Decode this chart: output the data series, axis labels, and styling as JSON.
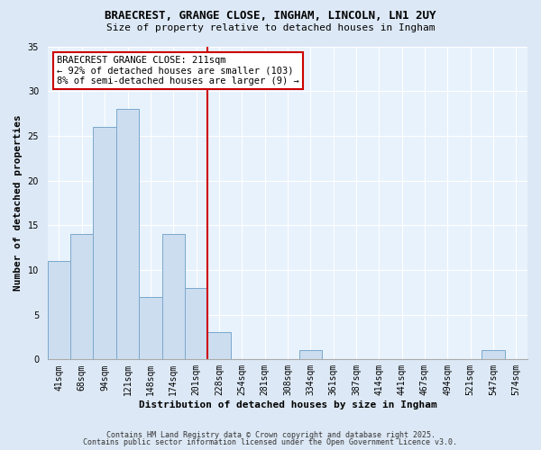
{
  "title1": "BRAECREST, GRANGE CLOSE, INGHAM, LINCOLN, LN1 2UY",
  "title2": "Size of property relative to detached houses in Ingham",
  "xlabel": "Distribution of detached houses by size in Ingham",
  "ylabel": "Number of detached properties",
  "bin_labels": [
    "41sqm",
    "68sqm",
    "94sqm",
    "121sqm",
    "148sqm",
    "174sqm",
    "201sqm",
    "228sqm",
    "254sqm",
    "281sqm",
    "308sqm",
    "334sqm",
    "361sqm",
    "387sqm",
    "414sqm",
    "441sqm",
    "467sqm",
    "494sqm",
    "521sqm",
    "547sqm",
    "574sqm"
  ],
  "bar_heights": [
    11,
    14,
    26,
    28,
    7,
    14,
    8,
    3,
    0,
    0,
    0,
    1,
    0,
    0,
    0,
    0,
    0,
    0,
    0,
    1,
    0
  ],
  "bar_color": "#ccddf0",
  "bar_edge_color": "#7aa8cc",
  "vline_color": "#cc0000",
  "annotation_title": "BRAECREST GRANGE CLOSE: 211sqm",
  "annotation_line1": "← 92% of detached houses are smaller (103)",
  "annotation_line2": "8% of semi-detached houses are larger (9) →",
  "annotation_box_edge": "#cc0000",
  "ylim": [
    0,
    35
  ],
  "yticks": [
    0,
    5,
    10,
    15,
    20,
    25,
    30,
    35
  ],
  "footer1": "Contains HM Land Registry data © Crown copyright and database right 2025.",
  "footer2": "Contains public sector information licensed under the Open Government Licence v3.0.",
  "bg_color": "#dce8f5",
  "plot_bg_color": "#e8f2fc",
  "grid_color": "#ffffff",
  "title_fontsize": 9,
  "subtitle_fontsize": 8,
  "axis_label_fontsize": 8,
  "tick_fontsize": 7,
  "annotation_fontsize": 7.5,
  "footer_fontsize": 6
}
